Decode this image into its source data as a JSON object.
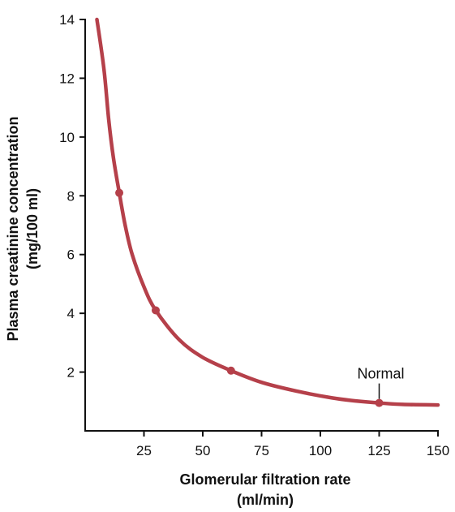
{
  "chart_data": {
    "type": "line",
    "xlabel_line1": "Glomerular filtration rate",
    "xlabel_line2": "(ml/min)",
    "ylabel_line1": "Plasma creatinine concentration",
    "ylabel_line2": "(mg/100 ml)",
    "xlim": [
      0,
      150
    ],
    "ylim": [
      0,
      14
    ],
    "x_ticks": [
      25,
      50,
      75,
      100,
      125,
      150
    ],
    "y_ticks": [
      2,
      4,
      6,
      8,
      10,
      12,
      14
    ],
    "grid": false,
    "series": [
      {
        "color": "#b5404a",
        "x": [
          5,
          8,
          10,
          12,
          14.5,
          17,
          20,
          25,
          30,
          40,
          50,
          62,
          75,
          90,
          105,
          115,
          125,
          135,
          150
        ],
        "y": [
          14,
          12.3,
          10.6,
          9.3,
          8.1,
          7.0,
          6.0,
          4.9,
          4.1,
          3.1,
          2.5,
          2.05,
          1.65,
          1.35,
          1.12,
          1.02,
          0.95,
          0.9,
          0.88
        ]
      }
    ],
    "points": [
      {
        "x": 14.5,
        "y": 8.1
      },
      {
        "x": 30,
        "y": 4.1
      },
      {
        "x": 62,
        "y": 2.05
      },
      {
        "x": 125,
        "y": 0.95
      }
    ],
    "annotation": {
      "text": "Normal",
      "x": 125,
      "y": 0.95
    }
  }
}
